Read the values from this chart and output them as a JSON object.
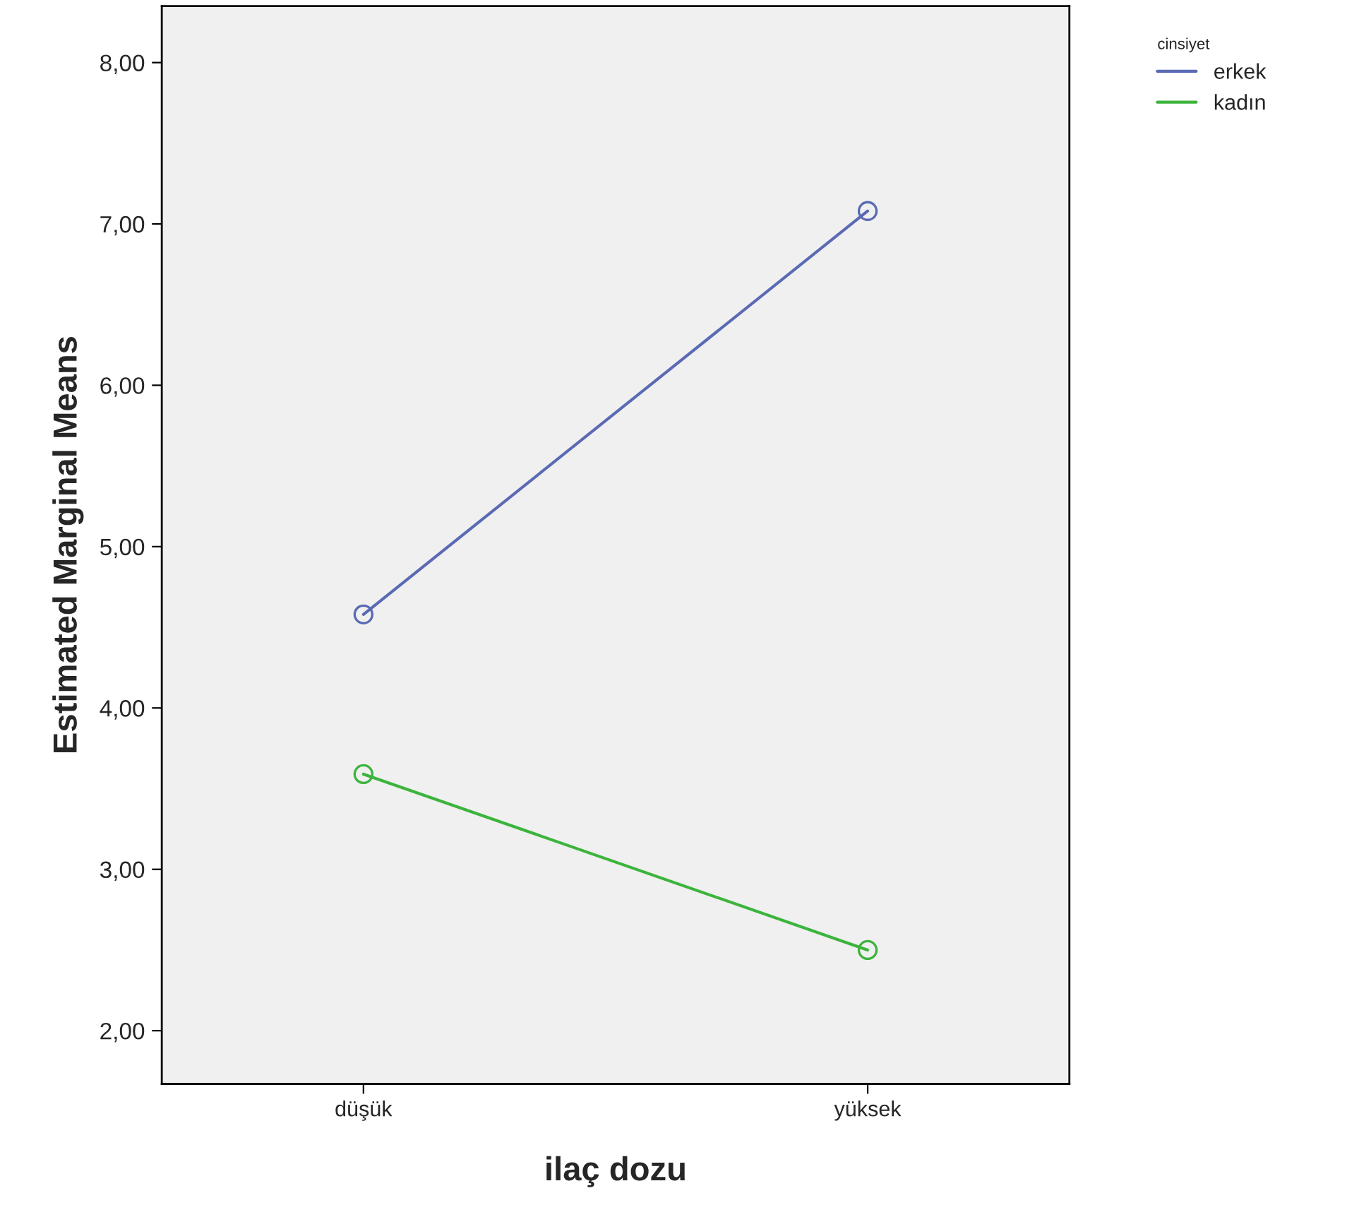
{
  "chart_data": {
    "type": "line",
    "xlabel": "ilaç dozu",
    "ylabel": "Estimated Marginal Means",
    "legend_title": "cinsiyet",
    "categories": [
      "düşük",
      "yüksek"
    ],
    "series": [
      {
        "name": "erkek",
        "color": "#5a6ab4",
        "values": [
          4.58,
          7.08
        ]
      },
      {
        "name": "kadın",
        "color": "#3cb43c",
        "values": [
          3.59,
          2.5
        ]
      }
    ],
    "ylim": [
      1.67,
      8.35
    ],
    "yticks": [
      {
        "value": 2,
        "label": "2,00"
      },
      {
        "value": 3,
        "label": "3,00"
      },
      {
        "value": 4,
        "label": "4,00"
      },
      {
        "value": 5,
        "label": "5,00"
      },
      {
        "value": 6,
        "label": "6,00"
      },
      {
        "value": 7,
        "label": "7,00"
      },
      {
        "value": 8,
        "label": "8,00"
      }
    ],
    "marker": "circle",
    "legend": "top right",
    "grid": false
  }
}
